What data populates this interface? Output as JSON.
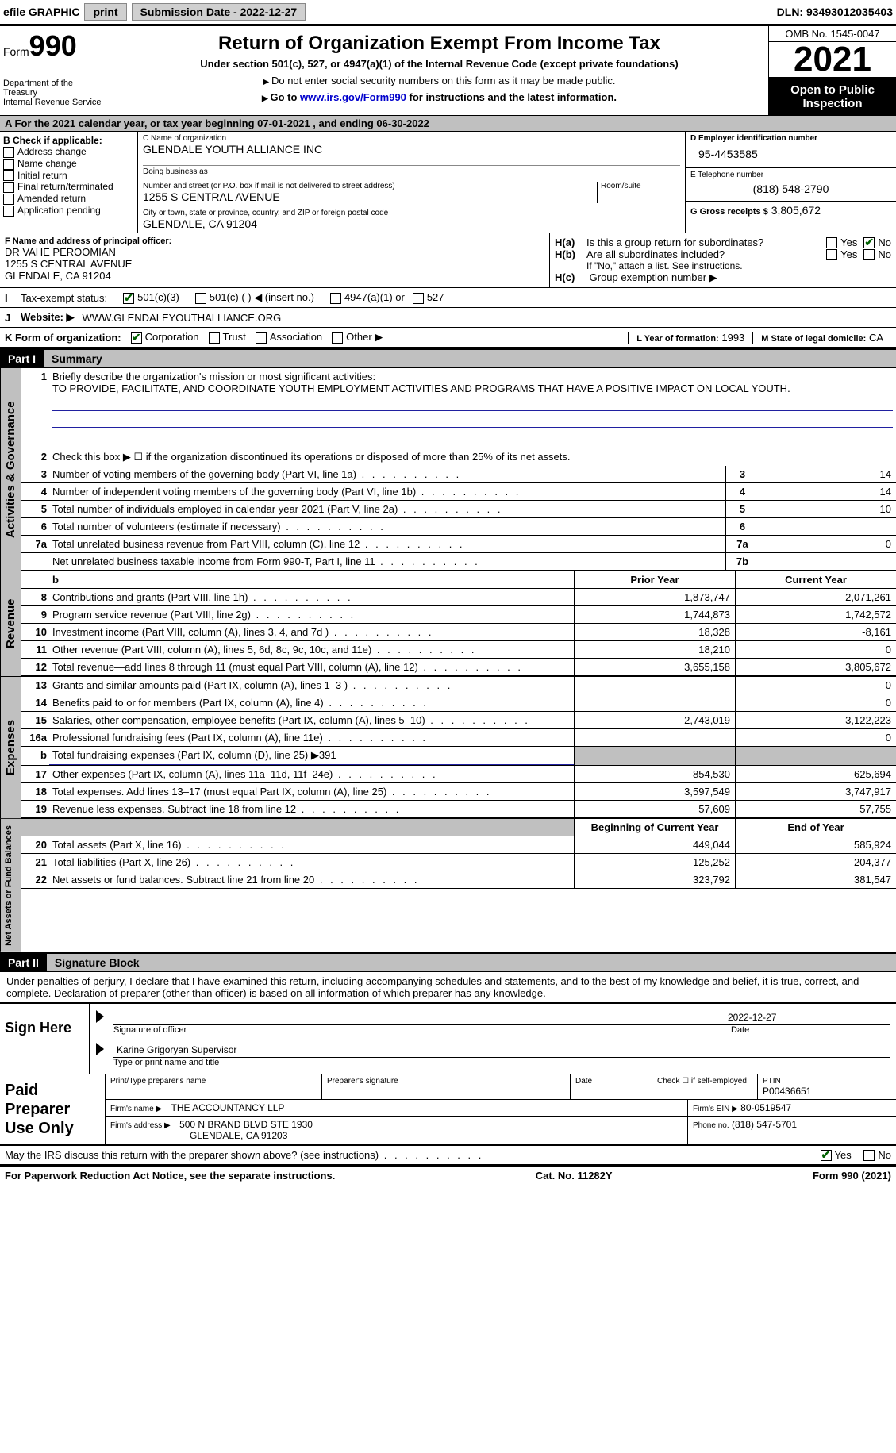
{
  "topbar": {
    "efile_label": "efile GRAPHIC",
    "print_btn": "print",
    "submission_label": "Submission Date - 2022-12-27",
    "dln": "DLN: 93493012035403"
  },
  "header": {
    "form_label": "Form",
    "form_number": "990",
    "dept": "Department of the Treasury",
    "irs": "Internal Revenue Service",
    "title": "Return of Organization Exempt From Income Tax",
    "subtitle": "Under section 501(c), 527, or 4947(a)(1) of the Internal Revenue Code (except private foundations)",
    "note1": "Do not enter social security numbers on this form as it may be made public.",
    "note2_prefix": "Go to ",
    "note2_link": "www.irs.gov/Form990",
    "note2_suffix": " for instructions and the latest information.",
    "omb": "OMB No. 1545-0047",
    "year": "2021",
    "open": "Open to Public Inspection"
  },
  "period": "A For the 2021 calendar year, or tax year beginning 07-01-2021     , and ending 06-30-2022",
  "sectionB": {
    "header": "B Check if applicable:",
    "options": [
      "Address change",
      "Name change",
      "Initial return",
      "Final return/terminated",
      "Amended return",
      "Application pending"
    ]
  },
  "sectionC": {
    "name_label": "C Name of organization",
    "name": "GLENDALE YOUTH ALLIANCE INC",
    "dba_label": "Doing business as",
    "dba": "",
    "addr_label": "Number and street (or P.O. box if mail is not delivered to street address)",
    "room_label": "Room/suite",
    "addr": "1255 S CENTRAL AVENUE",
    "city_label": "City or town, state or province, country, and ZIP or foreign postal code",
    "city": "GLENDALE, CA  91204"
  },
  "sectionD": {
    "ein_label": "D Employer identification number",
    "ein": "95-4453585",
    "phone_label": "E Telephone number",
    "phone": "(818) 548-2790",
    "gross_label": "G Gross receipts $",
    "gross": "3,805,672"
  },
  "sectionF": {
    "label": "F Name and address of principal officer:",
    "name": "DR VAHE PEROOMIAN",
    "addr1": "1255 S CENTRAL AVENUE",
    "addr2": "GLENDALE, CA  91204"
  },
  "sectionH": {
    "ha_label": "Is this a group return for subordinates?",
    "ha_prefix": "H(a)",
    "hb_prefix": "H(b)",
    "hb_label": "Are all subordinates included?",
    "hb_note": "If \"No,\" attach a list. See instructions.",
    "hc_prefix": "H(c)",
    "hc_label": "Group exemption number ▶",
    "yes": "Yes",
    "no": "No"
  },
  "rowI": {
    "label": "Tax-exempt status:",
    "opt1": "501(c)(3)",
    "opt2": "501(c) (   ) ◀ (insert no.)",
    "opt3": "4947(a)(1) or",
    "opt4": "527"
  },
  "rowJ": {
    "label": "Website: ▶",
    "value": "WWW.GLENDALEYOUTHALLIANCE.ORG"
  },
  "rowK": {
    "label": "K Form of organization:",
    "opts": [
      "Corporation",
      "Trust",
      "Association",
      "Other ▶"
    ],
    "l_label": "L Year of formation:",
    "l_val": "1993",
    "m_label": "M State of legal domicile:",
    "m_val": "CA"
  },
  "part1": {
    "header": "Part I",
    "title": "Summary",
    "line1_label": "Briefly describe the organization's mission or most significant activities:",
    "mission": "TO PROVIDE, FACILITATE, AND COORDINATE YOUTH EMPLOYMENT ACTIVITIES AND PROGRAMS THAT HAVE A POSITIVE IMPACT ON LOCAL YOUTH.",
    "line2": "Check this box ▶ ☐  if the organization discontinued its operations or disposed of more than 25% of its net assets.",
    "prior_header": "Prior Year",
    "current_header": "Current Year",
    "begin_header": "Beginning of Current Year",
    "end_header": "End of Year",
    "sections": {
      "governance": "Activities & Governance",
      "revenue": "Revenue",
      "expenses": "Expenses",
      "netassets": "Net Assets or Fund Balances"
    },
    "rows_gov": [
      {
        "n": "3",
        "label": "Number of voting members of the governing body (Part VI, line 1a)",
        "box": "3",
        "val": "14"
      },
      {
        "n": "4",
        "label": "Number of independent voting members of the governing body (Part VI, line 1b)",
        "box": "4",
        "val": "14"
      },
      {
        "n": "5",
        "label": "Total number of individuals employed in calendar year 2021 (Part V, line 2a)",
        "box": "5",
        "val": "10"
      },
      {
        "n": "6",
        "label": "Total number of volunteers (estimate if necessary)",
        "box": "6",
        "val": ""
      },
      {
        "n": "7a",
        "label": "Total unrelated business revenue from Part VIII, column (C), line 12",
        "box": "7a",
        "val": "0"
      },
      {
        "n": "",
        "label": "Net unrelated business taxable income from Form 990-T, Part I, line 11",
        "box": "7b",
        "val": ""
      }
    ],
    "rows_rev": [
      {
        "n": "8",
        "label": "Contributions and grants (Part VIII, line 1h)",
        "prior": "1,873,747",
        "cur": "2,071,261"
      },
      {
        "n": "9",
        "label": "Program service revenue (Part VIII, line 2g)",
        "prior": "1,744,873",
        "cur": "1,742,572"
      },
      {
        "n": "10",
        "label": "Investment income (Part VIII, column (A), lines 3, 4, and 7d )",
        "prior": "18,328",
        "cur": "-8,161"
      },
      {
        "n": "11",
        "label": "Other revenue (Part VIII, column (A), lines 5, 6d, 8c, 9c, 10c, and 11e)",
        "prior": "18,210",
        "cur": "0"
      },
      {
        "n": "12",
        "label": "Total revenue—add lines 8 through 11 (must equal Part VIII, column (A), line 12)",
        "prior": "3,655,158",
        "cur": "3,805,672"
      }
    ],
    "rows_exp": [
      {
        "n": "13",
        "label": "Grants and similar amounts paid (Part IX, column (A), lines 1–3 )",
        "prior": "",
        "cur": "0"
      },
      {
        "n": "14",
        "label": "Benefits paid to or for members (Part IX, column (A), line 4)",
        "prior": "",
        "cur": "0"
      },
      {
        "n": "15",
        "label": "Salaries, other compensation, employee benefits (Part IX, column (A), lines 5–10)",
        "prior": "2,743,019",
        "cur": "3,122,223"
      },
      {
        "n": "16a",
        "label": "Professional fundraising fees (Part IX, column (A), line 11e)",
        "prior": "",
        "cur": "0"
      },
      {
        "n": "b",
        "label": "Total fundraising expenses (Part IX, column (D), line 25) ▶391",
        "prior": "",
        "cur": "",
        "gray": true
      },
      {
        "n": "17",
        "label": "Other expenses (Part IX, column (A), lines 11a–11d, 11f–24e)",
        "prior": "854,530",
        "cur": "625,694"
      },
      {
        "n": "18",
        "label": "Total expenses. Add lines 13–17 (must equal Part IX, column (A), line 25)",
        "prior": "3,597,549",
        "cur": "3,747,917"
      },
      {
        "n": "19",
        "label": "Revenue less expenses. Subtract line 18 from line 12",
        "prior": "57,609",
        "cur": "57,755"
      }
    ],
    "rows_net": [
      {
        "n": "20",
        "label": "Total assets (Part X, line 16)",
        "prior": "449,044",
        "cur": "585,924"
      },
      {
        "n": "21",
        "label": "Total liabilities (Part X, line 26)",
        "prior": "125,252",
        "cur": "204,377"
      },
      {
        "n": "22",
        "label": "Net assets or fund balances. Subtract line 21 from line 20",
        "prior": "323,792",
        "cur": "381,547"
      }
    ]
  },
  "part2": {
    "header": "Part II",
    "title": "Signature Block",
    "declaration": "Under penalties of perjury, I declare that I have examined this return, including accompanying schedules and statements, and to the best of my knowledge and belief, it is true, correct, and complete. Declaration of preparer (other than officer) is based on all information of which preparer has any knowledge."
  },
  "sign": {
    "label": "Sign Here",
    "sig_label": "Signature of officer",
    "date": "2022-12-27",
    "date_label": "Date",
    "name": "Karine Grigoryan  Supervisor",
    "name_label": "Type or print name and title"
  },
  "preparer": {
    "label": "Paid Preparer Use Only",
    "print_label": "Print/Type preparer's name",
    "sig_label": "Preparer's signature",
    "date_label": "Date",
    "check_label": "Check ☐ if self-employed",
    "ptin_label": "PTIN",
    "ptin": "P00436651",
    "firm_name_label": "Firm's name      ▶",
    "firm_name": "THE ACCOUNTANCY LLP",
    "firm_ein_label": "Firm's EIN ▶",
    "firm_ein": "80-0519547",
    "firm_addr_label": "Firm's address ▶",
    "firm_addr1": "500 N BRAND BLVD STE 1930",
    "firm_addr2": "GLENDALE, CA  91203",
    "phone_label": "Phone no.",
    "phone": "(818) 547-5701"
  },
  "discuss": {
    "label": "May the IRS discuss this return with the preparer shown above? (see instructions)",
    "yes": "Yes",
    "no": "No"
  },
  "footer": {
    "left": "For Paperwork Reduction Act Notice, see the separate instructions.",
    "mid": "Cat. No. 11282Y",
    "right": "Form 990 (2021)"
  },
  "colors": {
    "link": "#0000cc",
    "gray": "#c0c0c0",
    "check": "#006000"
  }
}
